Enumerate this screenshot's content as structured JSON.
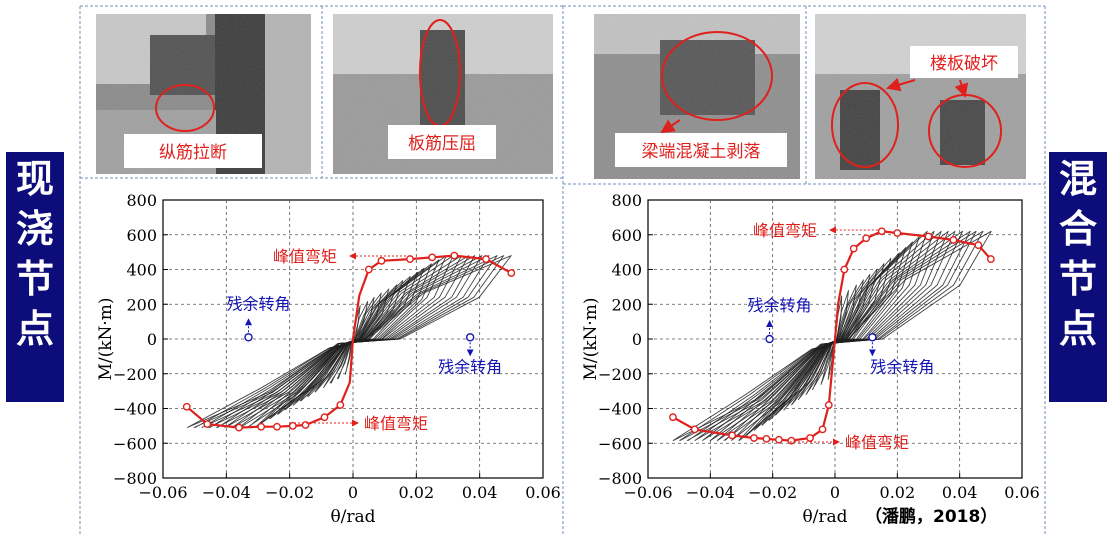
{
  "left_panel": {
    "side_label": [
      "现",
      "浇",
      "节",
      "点"
    ],
    "photo_labels": [
      "纵筋拉断",
      "板筋压屈"
    ]
  },
  "right_panel": {
    "side_label": [
      "混",
      "合",
      "节",
      "点"
    ],
    "photo_labels": [
      "梁端混凝土剥落",
      "楼板破坏"
    ]
  },
  "colors": {
    "accent_red": "#e0201c",
    "annotation_blue": "#1414b4",
    "sidebar_bg": "#0c0c7a",
    "curve": "#202020"
  },
  "chart_data": [
    {
      "type": "line",
      "xlabel": "θ/rad",
      "ylabel": "M/(kN·m)",
      "xlim": [
        -0.06,
        0.06
      ],
      "ylim": [
        -800,
        800
      ],
      "x_ticks": [
        "−0.06",
        "−0.04",
        "−0.02",
        "0",
        "0.02",
        "0.04",
        "0.06"
      ],
      "y_ticks": [
        "800",
        "600",
        "400",
        "200",
        "0",
        "−200",
        "−400",
        "−600",
        "−800"
      ],
      "grid": true,
      "series": [
        {
          "role": "skeleton",
          "x": [
            -0.0525,
            -0.046,
            -0.036,
            -0.029,
            -0.024,
            -0.019,
            -0.015,
            -0.009,
            -0.004,
            -0.001,
            0.0,
            0.002,
            0.005,
            0.009,
            0.018,
            0.025,
            0.032,
            0.042,
            0.05
          ],
          "y": [
            -390,
            -490,
            -510,
            -505,
            -505,
            -500,
            -495,
            -450,
            -380,
            -250,
            0,
            250,
            400,
            450,
            460,
            470,
            480,
            460,
            380
          ]
        },
        {
          "role": "residual",
          "x": [
            -0.033,
            0.037
          ],
          "y": [
            10,
            10
          ]
        }
      ],
      "annotations": {
        "peak_top": "峰值弯矩",
        "peak_bottom": "峰值弯矩",
        "residual_left": "残余转角",
        "residual_right": "残余转角"
      }
    },
    {
      "type": "line",
      "xlabel": "θ/rad",
      "ylabel": "M/(kN·m)",
      "xlim": [
        -0.06,
        0.06
      ],
      "ylim": [
        -800,
        800
      ],
      "x_ticks": [
        "−0.06",
        "−0.04",
        "−0.02",
        "0",
        "0.02",
        "0.04",
        "0.06"
      ],
      "y_ticks": [
        "800",
        "600",
        "400",
        "200",
        "0",
        "−200",
        "−400",
        "−600",
        "−800"
      ],
      "grid": true,
      "source": "（潘鹏，2018）",
      "series": [
        {
          "role": "skeleton",
          "x": [
            -0.052,
            -0.045,
            -0.033,
            -0.026,
            -0.022,
            -0.018,
            -0.014,
            -0.008,
            -0.004,
            -0.002,
            0.0,
            0.001,
            0.003,
            0.006,
            0.01,
            0.015,
            0.02,
            0.03,
            0.038,
            0.046,
            0.05
          ],
          "y": [
            -450,
            -520,
            -555,
            -570,
            -575,
            -580,
            -585,
            -570,
            -520,
            -380,
            0,
            200,
            400,
            520,
            580,
            620,
            610,
            590,
            570,
            540,
            460
          ]
        },
        {
          "role": "residual",
          "x": [
            -0.021,
            0.012
          ],
          "y": [
            0,
            10
          ]
        }
      ],
      "annotations": {
        "peak_top": "峰值弯矩",
        "peak_bottom": "峰值弯矩",
        "residual_left": "残余转角",
        "residual_right": "残余转角"
      }
    }
  ]
}
